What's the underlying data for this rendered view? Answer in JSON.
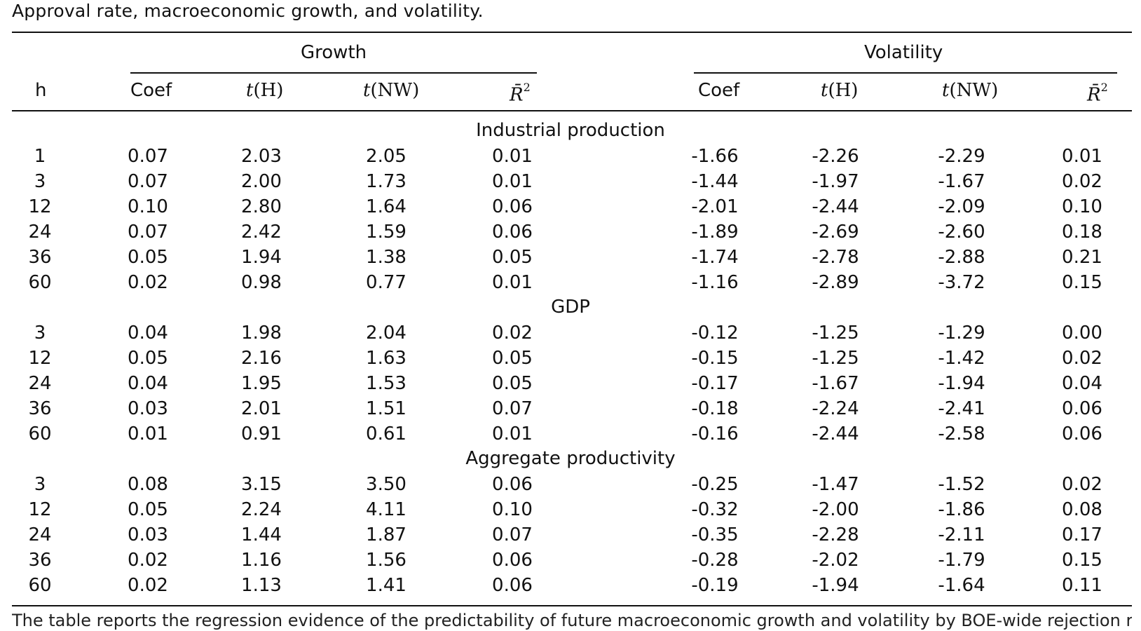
{
  "caption": "Approval rate, macroeconomic growth, and volatility.",
  "header": {
    "h": "h",
    "growth_label": "Growth",
    "volatility_label": "Volatility",
    "coef": "Coef",
    "tH_t": "t",
    "tH_arg": "(H)",
    "tNW_t": "t",
    "tNW_arg": "(NW)",
    "r2_base": "R̄",
    "r2_sup": "2"
  },
  "sections": [
    {
      "title": "Industrial production",
      "rows": [
        [
          "1",
          "0.07",
          "2.03",
          "2.05",
          "0.01",
          "-1.66",
          "-2.26",
          "-2.29",
          "0.01"
        ],
        [
          "3",
          "0.07",
          "2.00",
          "1.73",
          "0.01",
          "-1.44",
          "-1.97",
          "-1.67",
          "0.02"
        ],
        [
          "12",
          "0.10",
          "2.80",
          "1.64",
          "0.06",
          "-2.01",
          "-2.44",
          "-2.09",
          "0.10"
        ],
        [
          "24",
          "0.07",
          "2.42",
          "1.59",
          "0.06",
          "-1.89",
          "-2.69",
          "-2.60",
          "0.18"
        ],
        [
          "36",
          "0.05",
          "1.94",
          "1.38",
          "0.05",
          "-1.74",
          "-2.78",
          "-2.88",
          "0.21"
        ],
        [
          "60",
          "0.02",
          "0.98",
          "0.77",
          "0.01",
          "-1.16",
          "-2.89",
          "-3.72",
          "0.15"
        ]
      ]
    },
    {
      "title": "GDP",
      "rows": [
        [
          "3",
          "0.04",
          "1.98",
          "2.04",
          "0.02",
          "-0.12",
          "-1.25",
          "-1.29",
          "0.00"
        ],
        [
          "12",
          "0.05",
          "2.16",
          "1.63",
          "0.05",
          "-0.15",
          "-1.25",
          "-1.42",
          "0.02"
        ],
        [
          "24",
          "0.04",
          "1.95",
          "1.53",
          "0.05",
          "-0.17",
          "-1.67",
          "-1.94",
          "0.04"
        ],
        [
          "36",
          "0.03",
          "2.01",
          "1.51",
          "0.07",
          "-0.18",
          "-2.24",
          "-2.41",
          "0.06"
        ],
        [
          "60",
          "0.01",
          "0.91",
          "0.61",
          "0.01",
          "-0.16",
          "-2.44",
          "-2.58",
          "0.06"
        ]
      ]
    },
    {
      "title": "Aggregate productivity",
      "rows": [
        [
          "3",
          "0.08",
          "3.15",
          "3.50",
          "0.06",
          "-0.25",
          "-1.47",
          "-1.52",
          "0.02"
        ],
        [
          "12",
          "0.05",
          "2.24",
          "4.11",
          "0.10",
          "-0.32",
          "-2.00",
          "-1.86",
          "0.08"
        ],
        [
          "24",
          "0.03",
          "1.44",
          "1.87",
          "0.07",
          "-0.35",
          "-2.28",
          "-2.11",
          "0.17"
        ],
        [
          "36",
          "0.02",
          "1.16",
          "1.56",
          "0.06",
          "-0.28",
          "-2.02",
          "-1.79",
          "0.15"
        ],
        [
          "60",
          "0.02",
          "1.13",
          "1.41",
          "0.06",
          "-0.19",
          "-1.94",
          "-1.64",
          "0.11"
        ]
      ]
    }
  ],
  "footnote": "The table reports the regression evidence of the predictability of future macroeconomic growth and volatility by BOE-wide rejection rate."
}
